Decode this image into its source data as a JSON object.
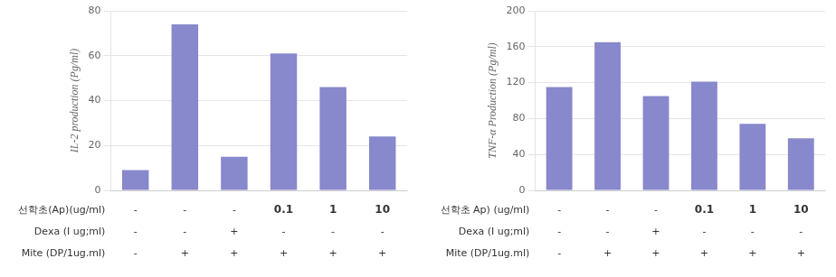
{
  "chart_data": [
    {
      "type": "bar",
      "ylabel": "IL-2 production (Pg/ml)",
      "categories": [
        null,
        null,
        null,
        null,
        null,
        null
      ],
      "values": [
        9,
        74,
        15,
        61,
        46,
        24
      ],
      "color": "#8888cc",
      "ylim": [
        0,
        80
      ],
      "yticks": [
        0,
        20,
        40,
        60,
        80
      ],
      "grid": true,
      "tick_labels": "y",
      "table": [
        {
          "label": "선학초(Ap)(ug/ml)",
          "cells": [
            "-",
            "-",
            "-",
            "0.1",
            "1",
            "10"
          ]
        },
        {
          "label": "Dexa (I ug;ml)",
          "cells": [
            "-",
            "-",
            "+",
            "-",
            "-",
            "-"
          ]
        },
        {
          "label": "Mite (DP/1ug.ml)",
          "cells": [
            "-",
            "+",
            "+",
            "+",
            "+",
            "+"
          ]
        }
      ]
    },
    {
      "type": "bar",
      "ylabel": "TNF-α Production (Pg/ml)",
      "categories": [
        null,
        null,
        null,
        null,
        null,
        null
      ],
      "values": [
        115,
        165,
        105,
        121,
        74,
        58
      ],
      "color": "#8888cc",
      "ylim": [
        0,
        200
      ],
      "yticks": [
        0,
        40,
        80,
        120,
        160,
        200
      ],
      "grid": true,
      "tick_labels": "y",
      "table": [
        {
          "label": "선학초 Ap) (ug/ml)",
          "cells": [
            "-",
            "-",
            "-",
            "0.1",
            "1",
            "10"
          ]
        },
        {
          "label": "Dexa (I ug;ml)",
          "cells": [
            "-",
            "-",
            "+",
            "-",
            "-",
            "-"
          ]
        },
        {
          "label": "Mite (DP/1ug.ml)",
          "cells": [
            "-",
            "+",
            "+",
            "+",
            "+",
            "+"
          ]
        }
      ]
    }
  ]
}
